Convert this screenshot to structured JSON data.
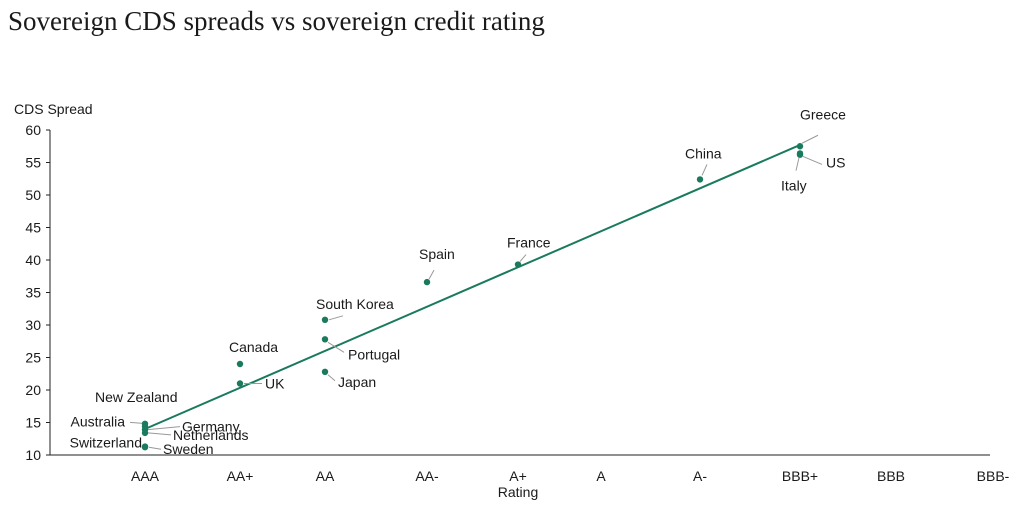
{
  "title": "Sovereign CDS spreads vs sovereign credit rating",
  "chart_data": {
    "type": "scatter",
    "title": "Sovereign CDS spreads vs sovereign credit rating",
    "xlabel": "Rating",
    "ylabel": "CDS Spread",
    "categories": [
      "AAA",
      "AA+",
      "AA",
      "AA-",
      "A+",
      "A",
      "A-",
      "BBB+",
      "BBB",
      "BBB-"
    ],
    "y_ticks": [
      10,
      15,
      20,
      25,
      30,
      35,
      40,
      45,
      50,
      55,
      60
    ],
    "ylim": [
      10,
      60
    ],
    "grid": false,
    "marker_color": "#1a7a5e",
    "line_color": "#1a7a5e",
    "trendline": {
      "x_start": "AAA",
      "y_start": 14,
      "x_end": "BBB+",
      "y_end": 57.7
    },
    "points": [
      {
        "name": "New Zealand",
        "x": "AAA",
        "y": 14.8
      },
      {
        "name": "Australia",
        "x": "AAA",
        "y": 14.4
      },
      {
        "name": "Germany",
        "x": "AAA",
        "y": 13.9
      },
      {
        "name": "Netherlands",
        "x": "AAA",
        "y": 13.4
      },
      {
        "name": "Switzerland",
        "x": "AAA",
        "y": 11.3
      },
      {
        "name": "Sweden",
        "x": "AAA",
        "y": 11.2
      },
      {
        "name": "Canada",
        "x": "AA+",
        "y": 24
      },
      {
        "name": "UK",
        "x": "AA+",
        "y": 21
      },
      {
        "name": "South Korea",
        "x": "AA",
        "y": 30.8
      },
      {
        "name": "Portugal",
        "x": "AA",
        "y": 27.8
      },
      {
        "name": "Japan",
        "x": "AA",
        "y": 22.8
      },
      {
        "name": "Spain",
        "x": "AA-",
        "y": 36.6
      },
      {
        "name": "France",
        "x": "A+",
        "y": 39.3
      },
      {
        "name": "China",
        "x": "A-",
        "y": 52.4
      },
      {
        "name": "Greece",
        "x": "BBB+",
        "y": 57.5
      },
      {
        "name": "Italy",
        "x": "BBB+",
        "y": 56.2
      },
      {
        "name": "US",
        "x": "BBB+",
        "y": 56.4
      }
    ]
  }
}
